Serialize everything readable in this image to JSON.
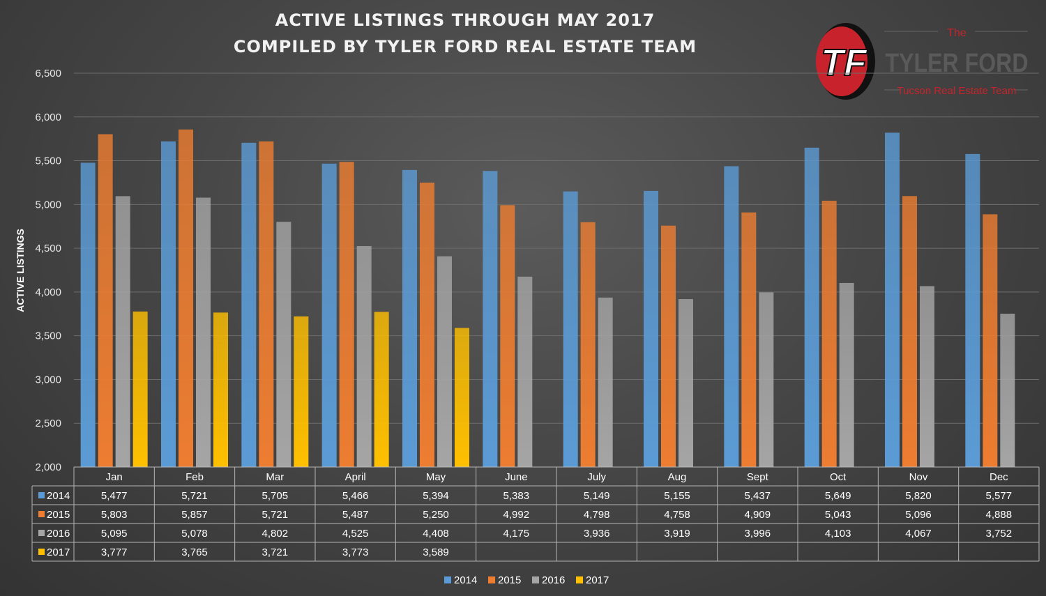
{
  "title": {
    "line1": "ACTIVE LISTINGS THROUGH MAY 2017",
    "line2": "COMPILED BY TYLER FORD REAL ESTATE TEAM"
  },
  "logo": {
    "monogram": "TF",
    "the": "The",
    "name": "TYLER FORD",
    "tagline": "Tucson Real Estate Team"
  },
  "chart_data": {
    "type": "bar",
    "title": "ACTIVE LISTINGS THROUGH MAY 2017",
    "subtitle": "COMPILED BY TYLER FORD REAL ESTATE TEAM",
    "xlabel": "",
    "ylabel": "ACTIVE LISTINGS",
    "ylim": [
      2000,
      6500
    ],
    "yticks": [
      2000,
      2500,
      3000,
      3500,
      4000,
      4500,
      5000,
      5500,
      6000,
      6500
    ],
    "ytick_labels": [
      "2,000",
      "2,500",
      "3,000",
      "3,500",
      "4,000",
      "4,500",
      "5,000",
      "5,500",
      "6,000",
      "6,500"
    ],
    "grid": true,
    "legend_position": "bottom",
    "categories": [
      "Jan",
      "Feb",
      "Mar",
      "April",
      "May",
      "June",
      "July",
      "Aug",
      "Sept",
      "Oct",
      "Nov",
      "Dec"
    ],
    "series": [
      {
        "name": "2014",
        "color": "#5b9bd5",
        "values": [
          5477,
          5721,
          5705,
          5466,
          5394,
          5383,
          5149,
          5155,
          5437,
          5649,
          5820,
          5577
        ],
        "labels": [
          "5,477",
          "5,721",
          "5,705",
          "5,466",
          "5,394",
          "5,383",
          "5,149",
          "5,155",
          "5,437",
          "5,649",
          "5,820",
          "5,577"
        ]
      },
      {
        "name": "2015",
        "color": "#ed7d31",
        "values": [
          5803,
          5857,
          5721,
          5487,
          5250,
          4992,
          4798,
          4758,
          4909,
          5043,
          5096,
          4888
        ],
        "labels": [
          "5,803",
          "5,857",
          "5,721",
          "5,487",
          "5,250",
          "4,992",
          "4,798",
          "4,758",
          "4,909",
          "5,043",
          "5,096",
          "4,888"
        ]
      },
      {
        "name": "2016",
        "color": "#a5a5a5",
        "values": [
          5095,
          5078,
          4802,
          4525,
          4408,
          4175,
          3936,
          3919,
          3996,
          4103,
          4067,
          3752
        ],
        "labels": [
          "5,095",
          "5,078",
          "4,802",
          "4,525",
          "4,408",
          "4,175",
          "3,936",
          "3,919",
          "3,996",
          "4,103",
          "4,067",
          "3,752"
        ]
      },
      {
        "name": "2017",
        "color": "#ffc000",
        "values": [
          3777,
          3765,
          3721,
          3773,
          3589,
          null,
          null,
          null,
          null,
          null,
          null,
          null
        ],
        "labels": [
          "3,777",
          "3,765",
          "3,721",
          "3,773",
          "3,589",
          "",
          "",
          "",
          "",
          "",
          "",
          ""
        ]
      }
    ],
    "data_table": true
  }
}
